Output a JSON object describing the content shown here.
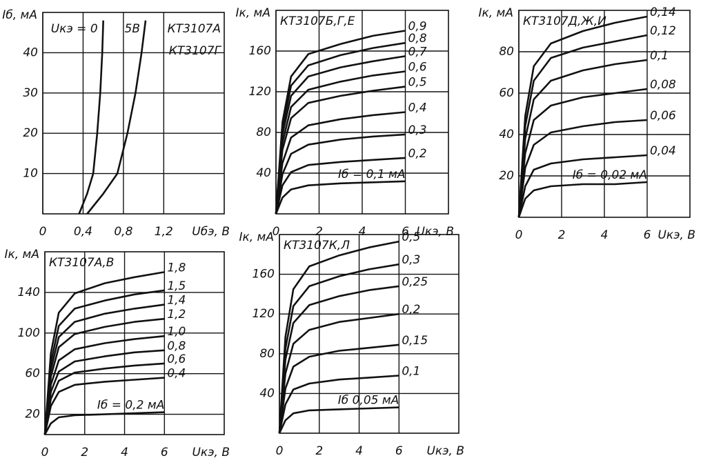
{
  "chart_data": [
    {
      "type": "line",
      "annotations": [
        "КТ3107А",
        "КТ3107Г"
      ],
      "ylabel": "Iб, мА",
      "xlabel": "Uбэ, В",
      "xlim": [
        0,
        1.8
      ],
      "ylim": [
        0,
        50
      ],
      "xticks": [
        0,
        {
          "value": 0.4,
          "label": "0,4"
        },
        {
          "value": 0.8,
          "label": "0,8"
        },
        {
          "value": 1.2,
          "label": "1,2"
        }
      ],
      "yticks": [
        10,
        20,
        30,
        40
      ],
      "grid": true,
      "series": [
        {
          "name": "Uкэ = 0",
          "color": "#111111",
          "x": [
            0.36,
            0.44,
            0.5,
            0.54,
            0.57,
            0.59,
            0.6
          ],
          "values": [
            0,
            5,
            10,
            20,
            30,
            40,
            48
          ]
        },
        {
          "name": "5В",
          "color": "#111111",
          "x": [
            0.44,
            0.6,
            0.74,
            0.84,
            0.92,
            0.98,
            1.02
          ],
          "values": [
            0,
            5,
            10,
            20,
            30,
            40,
            48
          ]
        }
      ]
    },
    {
      "type": "line",
      "title": "КТ3107Б,Г,Е",
      "ylabel": "Iк, мА",
      "xlabel": "Uкэ, В",
      "xlim": [
        0,
        8
      ],
      "ylim": [
        0,
        200
      ],
      "xticks": [
        0,
        2,
        4,
        6
      ],
      "yticks": [
        40,
        80,
        120,
        160
      ],
      "grid": true,
      "x": [
        0,
        0.3,
        0.7,
        1.5,
        3,
        4.5,
        6
      ],
      "series": [
        {
          "name": "0,9",
          "color": "#111111",
          "values": [
            0,
            90,
            135,
            157,
            167,
            175,
            180
          ]
        },
        {
          "name": "0,8",
          "color": "#111111",
          "values": [
            0,
            84,
            126,
            146,
            156,
            163,
            168
          ]
        },
        {
          "name": "0,7",
          "color": "#111111",
          "values": [
            0,
            78,
            116,
            135,
            144,
            150,
            155
          ]
        },
        {
          "name": "0,6",
          "color": "#111111",
          "values": [
            0,
            70,
            105,
            122,
            130,
            136,
            140
          ]
        },
        {
          "name": "0,5",
          "color": "#111111",
          "values": [
            0,
            63,
            94,
            109,
            116,
            121,
            125
          ]
        },
        {
          "name": "0,4",
          "color": "#111111",
          "values": [
            0,
            50,
            75,
            87,
            93,
            97,
            100
          ]
        },
        {
          "name": "0,3",
          "color": "#111111",
          "values": [
            0,
            39,
            59,
            68,
            73,
            76,
            78
          ]
        },
        {
          "name": "0,2",
          "color": "#111111",
          "values": [
            0,
            28,
            41,
            48,
            51,
            53,
            55
          ]
        },
        {
          "name": "Iб = 0,1 мА",
          "color": "#111111",
          "values": [
            0,
            16,
            24,
            28,
            30,
            31,
            32
          ]
        }
      ]
    },
    {
      "type": "line",
      "title": "КТ3107Д,Ж,И",
      "ylabel": "Iк, мА",
      "xlabel": "Uкэ, В",
      "xlim": [
        0,
        8
      ],
      "ylim": [
        0,
        100
      ],
      "xticks": [
        0,
        2,
        4,
        6
      ],
      "yticks": [
        20,
        40,
        60,
        80
      ],
      "grid": true,
      "x": [
        0,
        0.3,
        0.7,
        1.5,
        3,
        4.5,
        6
      ],
      "series": [
        {
          "name": "0,14",
          "color": "#111111",
          "values": [
            0,
            49,
            73,
            84,
            90,
            94,
            97
          ]
        },
        {
          "name": "0,12",
          "color": "#111111",
          "values": [
            0,
            44,
            66,
            77,
            82,
            85,
            88
          ]
        },
        {
          "name": "0,1",
          "color": "#111111",
          "values": [
            0,
            38,
            57,
            66,
            71,
            74,
            76
          ]
        },
        {
          "name": "0,08",
          "color": "#111111",
          "values": [
            0,
            31,
            47,
            54,
            58,
            60,
            62
          ]
        },
        {
          "name": "0,06",
          "color": "#111111",
          "values": [
            0,
            24,
            35,
            41,
            44,
            46,
            47
          ]
        },
        {
          "name": "0,04",
          "color": "#111111",
          "values": [
            0,
            15,
            23,
            26,
            28,
            29,
            30
          ]
        },
        {
          "name": "Iб = 0,02 мА",
          "color": "#111111",
          "values": [
            0,
            9,
            13,
            15,
            16,
            16,
            17
          ]
        }
      ]
    },
    {
      "type": "line",
      "title": "КТ3107А,В",
      "ylabel": "Iк, мА",
      "xlabel": "Uкэ, В",
      "xlim": [
        0,
        9
      ],
      "ylim": [
        0,
        180
      ],
      "xticks": [
        0,
        2,
        4,
        6
      ],
      "yticks": [
        20,
        60,
        100,
        140
      ],
      "grid": true,
      "x": [
        0,
        0.3,
        0.7,
        1.5,
        3,
        4.5,
        6
      ],
      "series": [
        {
          "name": "1,8",
          "color": "#111111",
          "values": [
            0,
            80,
            120,
            139,
            149,
            155,
            160
          ]
        },
        {
          "name": "1,5",
          "color": "#111111",
          "values": [
            0,
            71,
            107,
            124,
            132,
            138,
            142
          ]
        },
        {
          "name": "1,4",
          "color": "#111111",
          "values": [
            0,
            64,
            96,
            111,
            119,
            124,
            128
          ]
        },
        {
          "name": "1,2",
          "color": "#111111",
          "values": [
            0,
            57,
            86,
            99,
            106,
            111,
            114
          ]
        },
        {
          "name": "1,0",
          "color": "#111111",
          "values": [
            0,
            49,
            73,
            84,
            90,
            94,
            97
          ]
        },
        {
          "name": "0,8",
          "color": "#111111",
          "values": [
            0,
            42,
            62,
            72,
            77,
            81,
            83
          ]
        },
        {
          "name": "0,6",
          "color": "#111111",
          "values": [
            0,
            35,
            53,
            61,
            65,
            68,
            70
          ]
        },
        {
          "name": "0,4",
          "color": "#111111",
          "values": [
            0,
            28,
            42,
            49,
            52,
            54,
            56
          ]
        },
        {
          "name": "Iб = 0,2 мА",
          "color": "#111111",
          "values": [
            0,
            11,
            17,
            19,
            20,
            21,
            22
          ]
        }
      ]
    },
    {
      "type": "line",
      "title": "КТ3107К,Л",
      "ylabel": "Iк, мА",
      "xlabel": "Uкэ, В",
      "xlim": [
        0,
        9
      ],
      "ylim": [
        0,
        200
      ],
      "xticks": [
        0,
        2,
        4,
        6
      ],
      "yticks": [
        40,
        80,
        120,
        160
      ],
      "grid": true,
      "x": [
        0,
        0.3,
        0.7,
        1.5,
        3,
        4.5,
        6
      ],
      "series": [
        {
          "name": "0,5",
          "color": "#111111",
          "values": [
            0,
            97,
            145,
            168,
            179,
            187,
            193
          ]
        },
        {
          "name": "0,3",
          "color": "#111111",
          "values": [
            0,
            85,
            128,
            148,
            158,
            165,
            170
          ]
        },
        {
          "name": "0,25",
          "color": "#111111",
          "values": [
            0,
            74,
            111,
            129,
            138,
            144,
            148
          ]
        },
        {
          "name": "0,2",
          "color": "#111111",
          "values": [
            0,
            60,
            90,
            104,
            112,
            116,
            120
          ]
        },
        {
          "name": "0,15",
          "color": "#111111",
          "values": [
            0,
            45,
            67,
            77,
            83,
            86,
            89
          ]
        },
        {
          "name": "0,1",
          "color": "#111111",
          "values": [
            0,
            29,
            44,
            50,
            54,
            56,
            58
          ]
        },
        {
          "name": "Iб 0,05 мА",
          "color": "#111111",
          "values": [
            0,
            13,
            20,
            23,
            24,
            25,
            26
          ]
        }
      ]
    }
  ]
}
